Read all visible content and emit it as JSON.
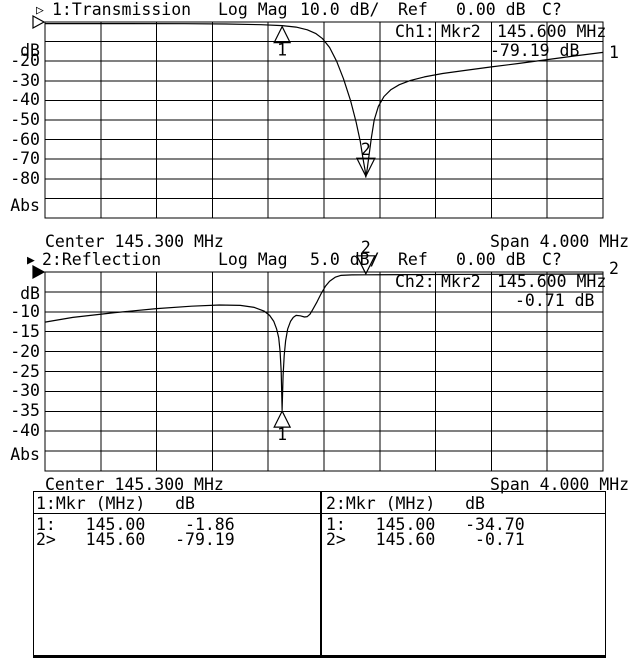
{
  "colors": {
    "foreground": "#000000",
    "background": "#ffffff"
  },
  "header1": {
    "pointer": "▷",
    "title": "1:Transmission",
    "format": "Log Mag",
    "scale": "10.0 dB/",
    "ref_label": "Ref",
    "ref_value": "0.00 dB",
    "cal_status": "C?"
  },
  "annotation1": {
    "channel": "Ch1:",
    "marker": "Mkr2",
    "freq": "145.600 MHz",
    "value": "-79.19 dB",
    "trace_indicator": "1"
  },
  "footer1": {
    "center": "Center 145.300 MHz",
    "span": "Span 4.000 MHz"
  },
  "header2": {
    "pointer": "▶",
    "title": "2:Reflection",
    "format": "Log Mag",
    "scale": "5.0 dB/",
    "ref_label": "Ref",
    "ref_value": "0.00 dB",
    "cal_status": "C?"
  },
  "annotation2": {
    "channel": "Ch2:",
    "marker": "Mkr2",
    "freq": "145.600 MHz",
    "value": "-0.71 dB",
    "trace_indicator": "2"
  },
  "footer2": {
    "center": "Center 145.300 MHz",
    "span": "Span 4.000 MHz"
  },
  "marker_table": {
    "left": {
      "header": "1:Mkr (MHz)   dB",
      "rows": [
        "1:   145.00    -1.86",
        "2>   145.60   -79.19"
      ]
    },
    "right": {
      "header": "2:Mkr (MHz)   dB",
      "rows": [
        "1:   145.00   -34.70",
        "2>   145.60    -0.71"
      ]
    }
  },
  "chart_data": [
    {
      "type": "line",
      "name": "transmission",
      "title": "1:Transmission",
      "format": "Log Mag",
      "scale_per_div": "10.0 dB/",
      "ref_level_db": 0.0,
      "x_unit": "MHz",
      "y_unit": "dB",
      "center_mhz": 145.3,
      "span_mhz": 4.0,
      "xlim": [
        143.3,
        147.3
      ],
      "ylim": [
        -100,
        0
      ],
      "grid": {
        "cols": 10,
        "rows": 10,
        "on": true
      },
      "ref_pointer": "hollow",
      "yaxis_labels": [
        {
          "text": "dB",
          "at_db": -14.8
        },
        {
          "text": "-20",
          "at_db": -20
        },
        {
          "text": "-30",
          "at_db": -30
        },
        {
          "text": "-40",
          "at_db": -40
        },
        {
          "text": "-50",
          "at_db": -50
        },
        {
          "text": "-60",
          "at_db": -60
        },
        {
          "text": "-70",
          "at_db": -70
        },
        {
          "text": "-80",
          "at_db": -80
        },
        {
          "text": "Abs",
          "at_db": -94.1
        }
      ],
      "series": [
        {
          "name": "trace1",
          "points": [
            [
              143.3,
              -0.8
            ],
            [
              143.8,
              -0.8
            ],
            [
              144.3,
              -0.85
            ],
            [
              144.6,
              -1.0
            ],
            [
              144.85,
              -1.4
            ],
            [
              145.0,
              -1.86
            ],
            [
              145.1,
              -2.6
            ],
            [
              145.18,
              -4.0
            ],
            [
              145.24,
              -5.8
            ],
            [
              145.29,
              -8.5
            ],
            [
              145.34,
              -13
            ],
            [
              145.39,
              -20
            ],
            [
              145.44,
              -29
            ],
            [
              145.49,
              -40
            ],
            [
              145.53,
              -51
            ],
            [
              145.56,
              -61
            ],
            [
              145.58,
              -70
            ],
            [
              145.595,
              -76
            ],
            [
              145.6,
              -79.19
            ],
            [
              145.61,
              -75
            ],
            [
              145.625,
              -67
            ],
            [
              145.64,
              -59
            ],
            [
              145.66,
              -50
            ],
            [
              145.69,
              -43
            ],
            [
              145.73,
              -38
            ],
            [
              145.78,
              -34.5
            ],
            [
              145.84,
              -32
            ],
            [
              145.92,
              -29.8
            ],
            [
              146.02,
              -28
            ],
            [
              146.15,
              -26.3
            ],
            [
              146.3,
              -24.8
            ],
            [
              146.5,
              -22.9
            ],
            [
              146.7,
              -21.1
            ],
            [
              146.9,
              -19.2
            ],
            [
              147.1,
              -17.3
            ],
            [
              147.3,
              -15.5
            ]
          ]
        }
      ],
      "markers": [
        {
          "label": "1",
          "freq_mhz": 145.0,
          "db": -1.86,
          "triangle": "up"
        },
        {
          "label": "2",
          "freq_mhz": 145.6,
          "db": -79.19,
          "triangle": "down"
        }
      ]
    },
    {
      "type": "line",
      "name": "reflection",
      "title": "2:Reflection",
      "format": "Log Mag",
      "scale_per_div": "5.0 dB/",
      "ref_level_db": 0.0,
      "x_unit": "MHz",
      "y_unit": "dB",
      "center_mhz": 145.3,
      "span_mhz": 4.0,
      "xlim": [
        143.3,
        147.3
      ],
      "ylim": [
        -50,
        0
      ],
      "grid": {
        "cols": 10,
        "rows": 10,
        "on": true
      },
      "ref_pointer": "filled",
      "yaxis_labels": [
        {
          "text": "dB",
          "at_db": -5.4
        },
        {
          "text": "-10",
          "at_db": -10
        },
        {
          "text": "-15",
          "at_db": -15
        },
        {
          "text": "-20",
          "at_db": -20
        },
        {
          "text": "-25",
          "at_db": -25
        },
        {
          "text": "-30",
          "at_db": -30
        },
        {
          "text": "-35",
          "at_db": -35
        },
        {
          "text": "-40",
          "at_db": -40
        },
        {
          "text": "Abs",
          "at_db": -45.85
        }
      ],
      "series": [
        {
          "name": "trace2",
          "points": [
            [
              143.3,
              -12.6
            ],
            [
              143.5,
              -11.4
            ],
            [
              143.8,
              -10.2
            ],
            [
              144.1,
              -9.2
            ],
            [
              144.35,
              -8.6
            ],
            [
              144.55,
              -8.3
            ],
            [
              144.7,
              -8.4
            ],
            [
              144.8,
              -8.9
            ],
            [
              144.87,
              -9.8
            ],
            [
              144.91,
              -10.9
            ],
            [
              144.94,
              -12.4
            ],
            [
              144.96,
              -14.3
            ],
            [
              144.975,
              -16.5
            ],
            [
              144.985,
              -20
            ],
            [
              144.993,
              -25
            ],
            [
              145.0,
              -34.7
            ],
            [
              145.007,
              -26
            ],
            [
              145.015,
              -21
            ],
            [
              145.025,
              -17.3
            ],
            [
              145.04,
              -14.3
            ],
            [
              145.06,
              -12.4
            ],
            [
              145.08,
              -11.4
            ],
            [
              145.1,
              -10.9
            ],
            [
              145.13,
              -11.0
            ],
            [
              145.16,
              -11.3
            ],
            [
              145.18,
              -11.2
            ],
            [
              145.2,
              -10.6
            ],
            [
              145.22,
              -9.4
            ],
            [
              145.25,
              -7.5
            ],
            [
              145.28,
              -5.4
            ],
            [
              145.31,
              -3.6
            ],
            [
              145.34,
              -2.3
            ],
            [
              145.38,
              -1.3
            ],
            [
              145.42,
              -0.85
            ],
            [
              145.5,
              -0.73
            ],
            [
              145.6,
              -0.71
            ],
            [
              145.9,
              -0.65
            ],
            [
              146.4,
              -0.58
            ],
            [
              147.3,
              -0.5
            ]
          ]
        }
      ],
      "markers": [
        {
          "label": "1",
          "freq_mhz": 145.0,
          "db": -34.7,
          "triangle": "up"
        },
        {
          "label": "2",
          "freq_mhz": 145.6,
          "db": -0.71,
          "triangle": "down"
        }
      ]
    }
  ]
}
